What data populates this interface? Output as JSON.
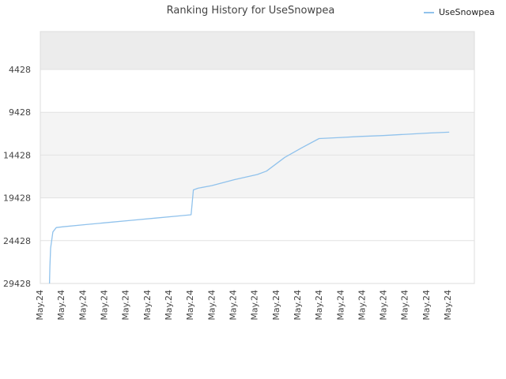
{
  "chart_data": {
    "type": "line",
    "title": "Ranking History for UseSnowpea",
    "xlabel": "",
    "ylabel": "",
    "y_reversed": true,
    "ylim": [
      29428,
      0
    ],
    "y_ticks": [
      {
        "value": 4428,
        "label": "4428"
      },
      {
        "value": 9428,
        "label": "9428"
      },
      {
        "value": 14428,
        "label": "14428"
      },
      {
        "value": 19428,
        "label": "19428"
      },
      {
        "value": 24428,
        "label": "24428"
      },
      {
        "value": 29428,
        "label": "29428"
      }
    ],
    "x_tick_labels": [
      "May.24",
      "May.24",
      "May.24",
      "May.24",
      "May.24",
      "May.24",
      "May.24",
      "May.24",
      "May.24",
      "May.24",
      "May.24",
      "May.24",
      "May.24",
      "May.24",
      "May.24",
      "May.24",
      "May.24",
      "May.24",
      "May.24",
      "May.24"
    ],
    "xlim": [
      0,
      19
    ],
    "grid": true,
    "legend_position": "top-right",
    "series": [
      {
        "name": "UseSnowpea",
        "color": "#90c2ec",
        "points": [
          [
            0.4,
            29428
          ],
          [
            0.42,
            27500
          ],
          [
            0.45,
            25300
          ],
          [
            0.55,
            23400
          ],
          [
            0.7,
            22900
          ],
          [
            1.0,
            22800
          ],
          [
            2.0,
            22550
          ],
          [
            3.0,
            22300
          ],
          [
            4.0,
            22050
          ],
          [
            5.0,
            21800
          ],
          [
            6.0,
            21550
          ],
          [
            6.6,
            21400
          ],
          [
            6.7,
            18500
          ],
          [
            6.9,
            18300
          ],
          [
            7.5,
            18000
          ],
          [
            8.5,
            17300
          ],
          [
            9.5,
            16700
          ],
          [
            9.9,
            16300
          ],
          [
            10.7,
            14700
          ],
          [
            11.5,
            13500
          ],
          [
            12.2,
            12500
          ],
          [
            13.0,
            12400
          ],
          [
            14.0,
            12250
          ],
          [
            15.0,
            12150
          ],
          [
            16.0,
            12000
          ],
          [
            17.0,
            11850
          ],
          [
            17.9,
            11750
          ]
        ]
      }
    ]
  },
  "colors": {
    "band_dark": "#ececec",
    "band_light": "#f4f4f4",
    "plot_bg": "#ffffff",
    "border": "#dddddd",
    "axis_text": "#444444"
  }
}
